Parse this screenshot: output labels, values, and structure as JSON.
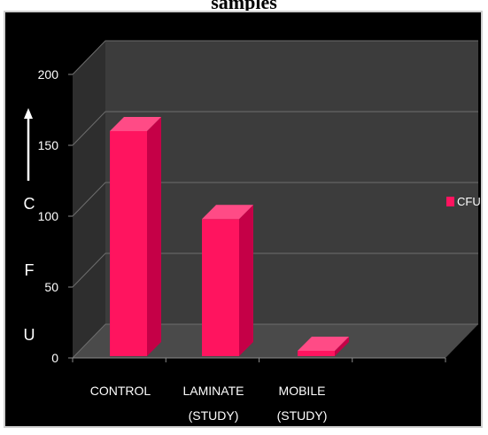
{
  "caption_top": "samples",
  "chart_data": {
    "type": "bar",
    "style": "3d-column",
    "categories": [
      [
        "CONTROL"
      ],
      [
        "LAMINATE",
        "(STUDY)"
      ],
      [
        "MOBILE",
        "(STUDY)"
      ]
    ],
    "values": [
      160,
      98,
      5
    ],
    "ylim": [
      0,
      200
    ],
    "yticks": [
      "0",
      "50",
      "100",
      "150",
      "200"
    ],
    "ylabel": [
      "C",
      "F",
      "U"
    ],
    "series": [
      {
        "name": "CFU",
        "values": [
          160,
          98,
          5
        ]
      }
    ],
    "legend_position": "right",
    "grid": true,
    "colors": {
      "bar_front": "#ff145f",
      "bar_top": "#ff4b86",
      "bar_side": "#c50047",
      "back_wall": "#3c3c3c",
      "side_wall": "#2e2e2e",
      "floor": "#4a4a4a",
      "background": "#000000",
      "text": "#ffffff"
    }
  }
}
